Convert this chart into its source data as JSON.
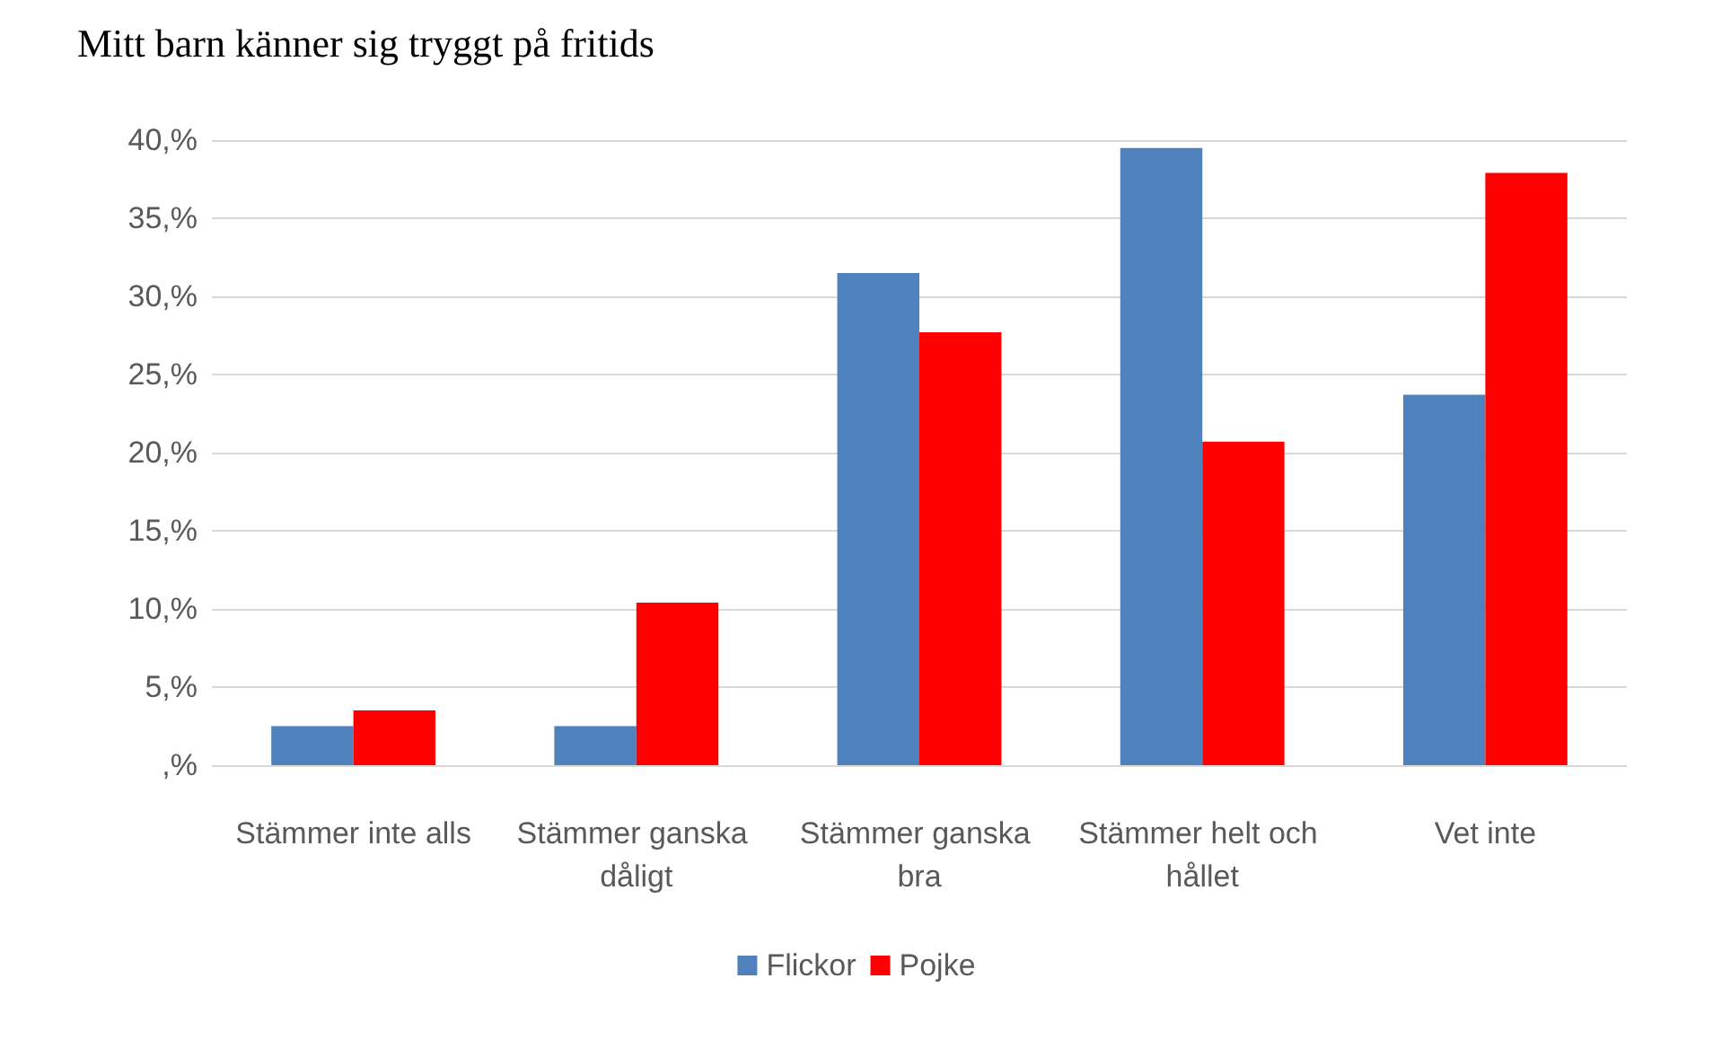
{
  "chart_data": {
    "type": "bar",
    "title": "Mitt barn känner sig tryggt på fritids",
    "categories": [
      "Stämmer inte alls",
      "Stämmer ganska dåligt",
      "Stämmer ganska bra",
      "Stämmer helt och hållet",
      "Vet inte"
    ],
    "series": [
      {
        "name": "Flickor",
        "color": "#4f81bd",
        "values": [
          2.5,
          2.5,
          31.5,
          39.5,
          23.7
        ]
      },
      {
        "name": "Pojke",
        "color": "#ff0000",
        "values": [
          3.5,
          10.4,
          27.7,
          20.7,
          37.9
        ]
      }
    ],
    "ylim": [
      0,
      40
    ],
    "yticks": [
      {
        "value": 0,
        "label": ",%"
      },
      {
        "value": 5,
        "label": "5,%"
      },
      {
        "value": 10,
        "label": "10,%"
      },
      {
        "value": 15,
        "label": "15,%"
      },
      {
        "value": 20,
        "label": "20,%"
      },
      {
        "value": 25,
        "label": "25,%"
      },
      {
        "value": 30,
        "label": "30,%"
      },
      {
        "value": 35,
        "label": "35,%"
      },
      {
        "value": 40,
        "label": "40,%"
      }
    ],
    "grid": "y",
    "legend": "bottom"
  }
}
